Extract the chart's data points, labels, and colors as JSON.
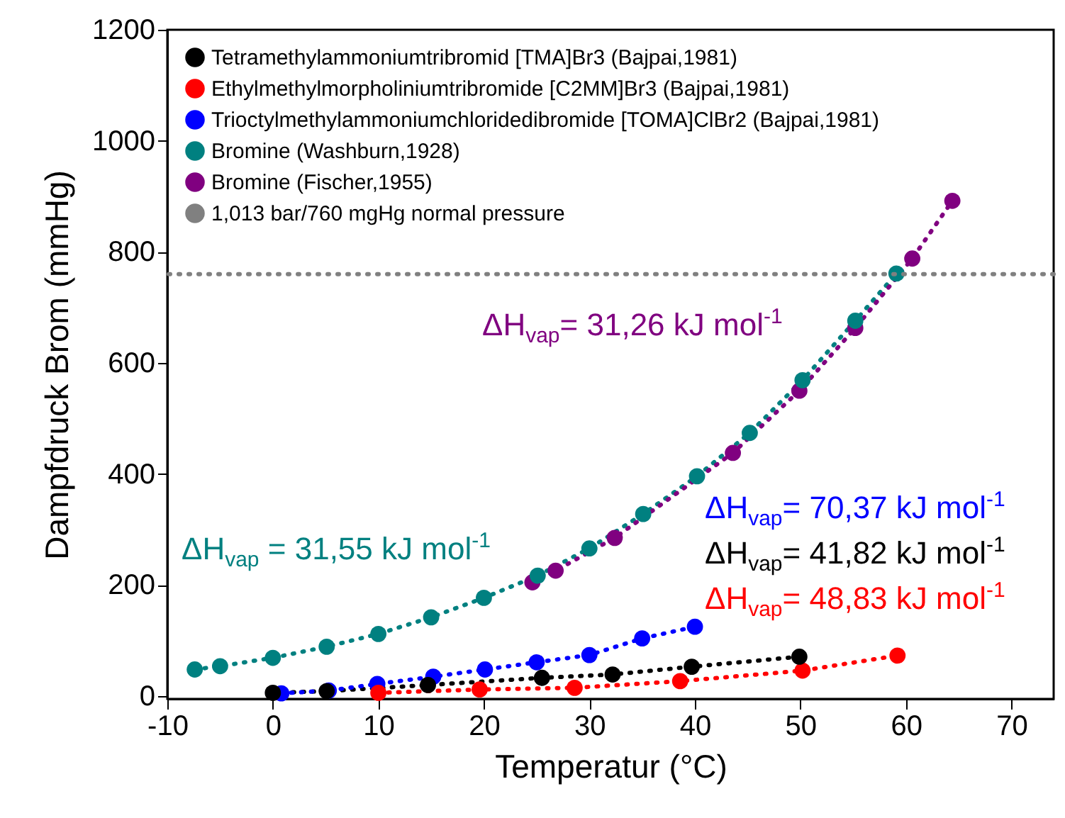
{
  "chart_data": {
    "type": "line",
    "xlabel": "Temperatur (°C)",
    "ylabel": "Dampfdruck Brom (mmHg)",
    "xlim": [
      -10,
      74
    ],
    "ylim": [
      -5,
      1200
    ],
    "xticks": [
      -10,
      0,
      10,
      20,
      30,
      40,
      50,
      60,
      70
    ],
    "yticks": [
      0,
      200,
      400,
      600,
      800,
      1000,
      1200
    ],
    "grid": false,
    "legend": "top left",
    "marker": "circle",
    "line_style": "dotted",
    "series": [
      {
        "name": "Tetramethylammoniumtribromid [TMA]Br3 (Bajpai,1981)",
        "color": "#000000",
        "x": [
          0,
          5.1,
          14.7,
          25.5,
          32.2,
          39.7,
          49.9
        ],
        "values": [
          6,
          9,
          20,
          33,
          39,
          53,
          71
        ]
      },
      {
        "name": "Ethylmethylmorpholiniumtribromide [C2MM]Br3 (Bajpai,1981)",
        "color": "#ff0000",
        "x": [
          10,
          19.6,
          28.6,
          38.6,
          50.2,
          59.2
        ],
        "values": [
          6,
          12,
          15,
          27,
          46,
          73
        ]
      },
      {
        "name": "Trioctylmethylammoniumchloridedibromide [TOMA]ClBr2 (Bajpai,1981)",
        "color": "#0000ff",
        "x": [
          0.8,
          5.3,
          9.9,
          15.2,
          20.1,
          25,
          30,
          35,
          40
        ],
        "values": [
          5,
          10,
          22,
          35,
          48,
          61,
          74,
          104,
          125
        ]
      },
      {
        "name": "Bromine (Washburn,1928)",
        "color": "#008080",
        "x": [
          -7.4,
          -5,
          0,
          5.1,
          10,
          15,
          20,
          25.1,
          30,
          35.1,
          40.2,
          45.2,
          50.2,
          55.2,
          59.1
        ],
        "values": [
          48,
          54,
          69,
          89,
          112,
          142,
          177,
          217,
          266,
          328,
          396,
          474,
          569,
          676,
          761
        ]
      },
      {
        "name": "Bromine (Fischer,1955)",
        "color": "#800080",
        "x": [
          24.6,
          26.8,
          32.4,
          43.6,
          49.9,
          55.2,
          60.6,
          64.4
        ],
        "values": [
          205,
          226,
          285,
          438,
          550,
          663,
          788,
          892
        ]
      }
    ],
    "ref_lines": [
      {
        "axis": "y",
        "value": 760,
        "label": "1,013 bar/760 mgHg normal pressure",
        "color": "#808080",
        "line_style": "dotted"
      }
    ],
    "annotations": [
      "ΔH$_{vap}$= 31,26 kJ mol$^{-1}$",
      "ΔH$_{vap}$ = 31,55 kJ mol$^{-1}$",
      "ΔH$_{vap}$= 70,37 kJ mol$^{-1}$",
      "ΔH$_{vap}$= 41,82 kJ mol$^{-1}$",
      "ΔH$_{vap}$= 48,83 kJ mol$^{-1}$"
    ]
  }
}
